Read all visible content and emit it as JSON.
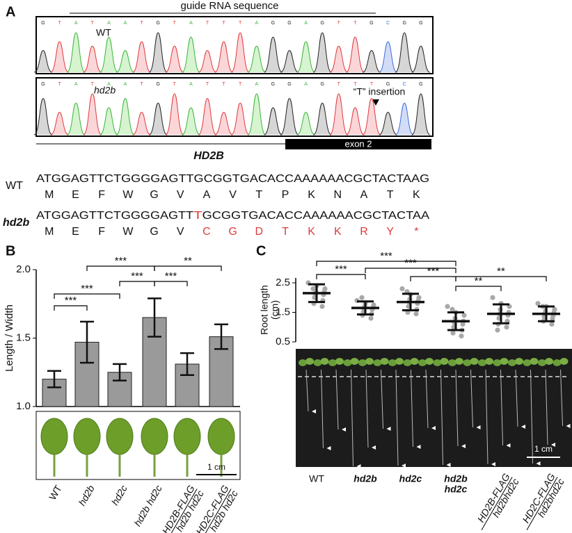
{
  "panel_labels": [
    "A",
    "B",
    "C"
  ],
  "panel_a": {
    "guide_label": "guide RNA sequence",
    "traces": [
      {
        "label": "WT",
        "bases": "GTATAATGTATTTAGGAGTTGCGG"
      },
      {
        "label": "hd2b",
        "bases": "GTATAATGTATTTAGGAGTTTGCG",
        "annotation": "“T” insertion"
      }
    ],
    "gene": "HD2B",
    "exon": "exon 2",
    "sequences": [
      {
        "label": "WT",
        "dna": [
          "ATGGAGTTCTGGGGAGTTGCGGTGACACCAAAAAACGCTACTAAG"
        ],
        "protein": [
          "M",
          "E",
          "F",
          "W",
          "G",
          "V",
          "A",
          "V",
          "T",
          "P",
          "K",
          "N",
          "A",
          "T",
          "K"
        ]
      },
      {
        "label": "hd2b",
        "dna": [
          "ATGGAGTTCTGGGGAGTT",
          "T",
          "GCGGTGACACCAAAAAACGCTACTAA"
        ],
        "protein": [
          "M",
          "E",
          "F",
          "W",
          "G",
          "V",
          "C",
          "G",
          "D",
          "T",
          "K",
          "K",
          "R",
          "Y",
          "*"
        ]
      }
    ]
  },
  "chart_data": [
    {
      "type": "bar",
      "ylabel": "Length / Width",
      "categories": [
        "WT",
        "hd2b",
        "hd2c",
        "hd2b hd2c",
        [
          "HD2B-FLAG",
          "hd2b hd2c"
        ],
        [
          "HD2C-FLAG",
          "hd2b hd2c"
        ]
      ],
      "values": [
        1.2,
        1.47,
        1.25,
        1.65,
        1.31,
        1.51
      ],
      "errors": [
        0.06,
        0.15,
        0.06,
        0.14,
        0.08,
        0.09
      ],
      "color": "#9a9a9a",
      "ylim": [
        1.0,
        2.0
      ],
      "yticks": [
        {
          "value": 1,
          "label": "1.0"
        },
        1.5,
        {
          "value": 2,
          "label": "2.0"
        }
      ],
      "annotations": [
        "***",
        "**",
        "***",
        "***",
        "***",
        "***"
      ],
      "scale_bar": "1 cm"
    },
    {
      "type": "strip",
      "ylabel": [
        "Root length",
        "(cm)"
      ],
      "categories": [
        "WT",
        "hd2b",
        "hd2c",
        [
          "hd2b",
          "hd2c"
        ],
        [
          "HD2B-FLAG",
          "hd2bhd2c"
        ],
        [
          "HD2C-FLAG",
          "hd2bhd2c"
        ]
      ],
      "means": [
        2.15,
        1.65,
        1.85,
        1.2,
        1.45,
        1.45
      ],
      "errors": [
        0.3,
        0.22,
        0.28,
        0.3,
        0.32,
        0.25
      ],
      "points": [
        [
          2.5,
          2.4,
          2.3,
          2.2,
          2.2,
          2.1,
          2.1,
          2.0,
          1.9,
          1.8,
          1.7,
          2.3
        ],
        [
          1.9,
          1.8,
          1.75,
          1.7,
          1.65,
          1.6,
          1.6,
          1.5,
          1.45,
          1.4,
          1.3,
          2.0
        ],
        [
          2.3,
          2.1,
          2.0,
          1.95,
          1.9,
          1.85,
          1.8,
          1.7,
          1.6,
          1.5,
          1.45,
          2.2
        ],
        [
          1.7,
          1.5,
          1.4,
          1.3,
          1.2,
          1.15,
          1.1,
          1.0,
          0.9,
          0.8,
          0.7,
          1.6
        ],
        [
          2.0,
          1.8,
          1.7,
          1.6,
          1.5,
          1.45,
          1.4,
          1.3,
          1.2,
          1.1,
          1.0,
          0.9
        ],
        [
          1.8,
          1.7,
          1.6,
          1.55,
          1.5,
          1.45,
          1.4,
          1.35,
          1.3,
          1.2,
          1.1,
          1.7
        ]
      ],
      "color": "#a8a8a8",
      "ylim": [
        0.5,
        2.5
      ],
      "yticks": [
        0.5,
        1.5,
        2.5
      ],
      "annotations": [
        "***",
        "***",
        "***",
        "***",
        "**",
        "**"
      ],
      "scale_bar": "1 cm"
    }
  ]
}
